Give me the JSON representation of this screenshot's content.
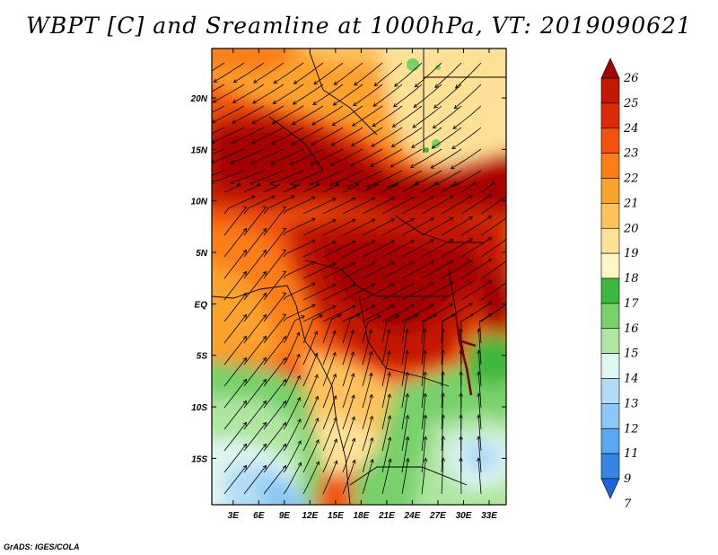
{
  "title": "WBPT [C] and Sreamline at 1000hPa, VT: 2019090621",
  "footer": "GrADS: IGES/COLA",
  "map": {
    "lon_labels": [
      "3E",
      "6E",
      "9E",
      "12E",
      "15E",
      "18E",
      "21E",
      "24E",
      "27E",
      "30E",
      "33E"
    ],
    "lon_values": [
      3,
      6,
      9,
      12,
      15,
      18,
      21,
      24,
      27,
      30,
      33
    ],
    "lat_labels": [
      "20N",
      "15N",
      "10N",
      "5N",
      "EQ",
      "5S",
      "10S",
      "15S"
    ],
    "lat_values": [
      20,
      15,
      10,
      5,
      0,
      -5,
      -10,
      -15
    ],
    "lon_range": [
      0.5,
      35
    ],
    "lat_range": [
      -19.5,
      24.8
    ]
  },
  "colorbar": {
    "levels": [
      "26",
      "25",
      "24",
      "23",
      "22",
      "21",
      "20",
      "19",
      "18",
      "17",
      "16",
      "15",
      "14",
      "13",
      "12",
      "11",
      "9",
      "7"
    ],
    "colors": [
      "#a50303",
      "#c41806",
      "#dd2a08",
      "#f2520d",
      "#fb7e15",
      "#fda22a",
      "#fec25c",
      "#fee196",
      "#fef6c5",
      "#3fb83e",
      "#78d16a",
      "#aee6a0",
      "#e0f6f0",
      "#b2dcf6",
      "#8dc7f4",
      "#5aa8ef",
      "#3286e6",
      "#1e64dc"
    ]
  }
}
